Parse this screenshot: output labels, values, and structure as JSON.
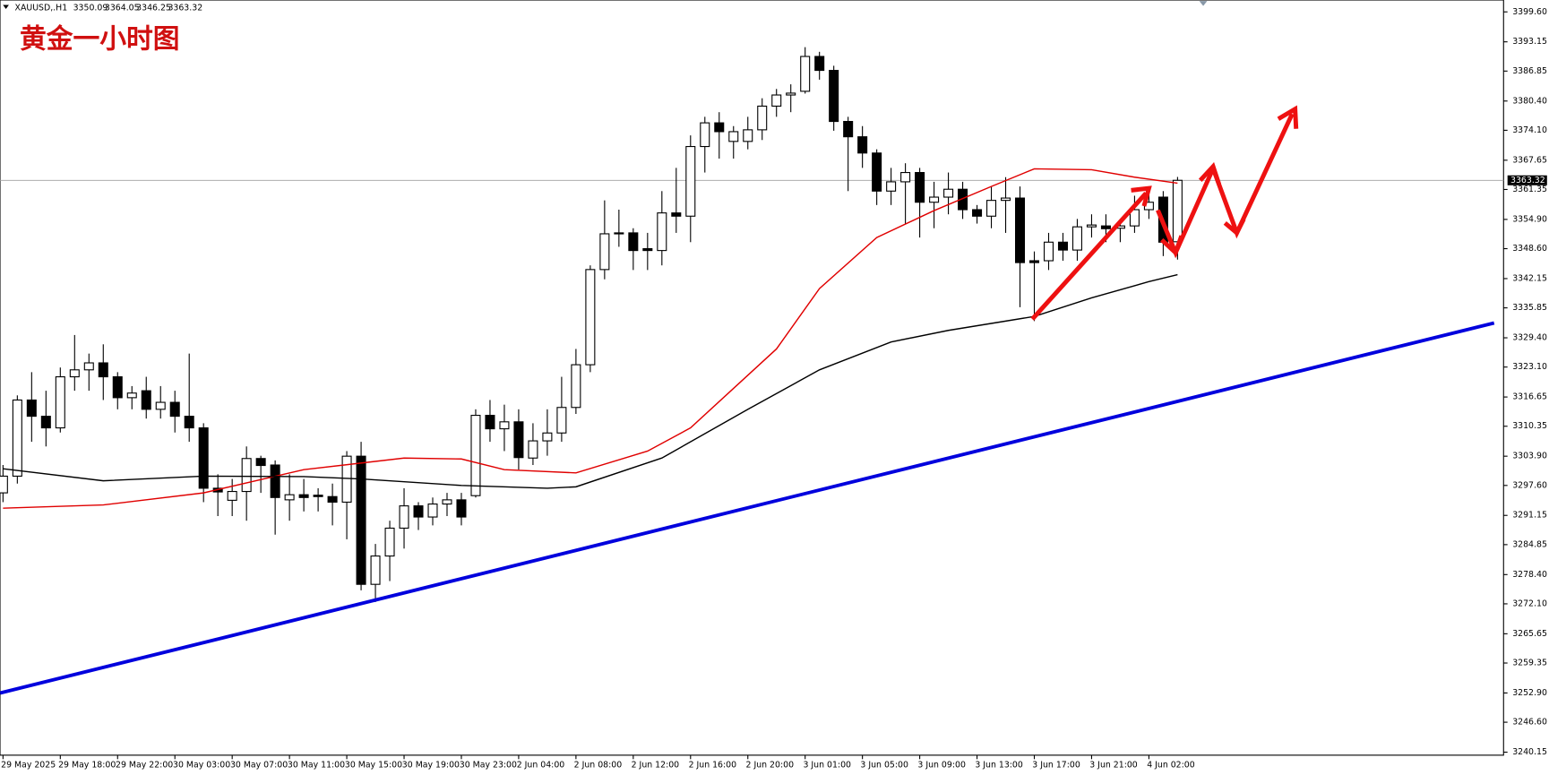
{
  "chart_data": {
    "type": "candlestick",
    "symbol": "XAUUSD,.H1",
    "header_values": [
      3350.09,
      3364.05,
      3346.25,
      3363.32
    ],
    "title": "黄金一小时图",
    "last_price": 3363.32,
    "categories": [
      "29 May 2025",
      null,
      null,
      null,
      "29 May 18:00",
      null,
      null,
      null,
      "29 May 22:00",
      null,
      null,
      null,
      "30 May 03:00",
      null,
      null,
      null,
      "30 May 07:00",
      null,
      null,
      null,
      "30 May 11:00",
      null,
      null,
      null,
      "30 May 15:00",
      null,
      null,
      null,
      "30 May 19:00",
      null,
      null,
      null,
      "30 May 23:00",
      null,
      null,
      null,
      "2 Jun 04:00",
      null,
      null,
      null,
      "2 Jun 08:00",
      null,
      null,
      null,
      "2 Jun 12:00",
      null,
      null,
      null,
      "2 Jun 16:00",
      null,
      null,
      null,
      "2 Jun 20:00",
      null,
      null,
      null,
      "3 Jun 01:00",
      null,
      null,
      null,
      "3 Jun 05:00",
      null,
      null,
      null,
      "3 Jun 09:00",
      null,
      null,
      null,
      "3 Jun 13:00",
      null,
      null,
      null,
      "3 Jun 17:00",
      null,
      null,
      null,
      "3 Jun 21:00",
      null,
      null,
      null,
      "4 Jun 02:00",
      null,
      null
    ],
    "open": [
      3296.0,
      3299.6,
      3316,
      3312.5,
      3310,
      3321,
      3322.5,
      3324,
      3321,
      3316.5,
      3318,
      3314,
      3315.5,
      3312.5,
      3310,
      3297,
      3294.4,
      3296.3,
      3303.4,
      3302,
      3294.5,
      3295.6,
      3295.5,
      3295.2,
      3294,
      3303.9,
      3276.3,
      3282.4,
      3288.4,
      3293.2,
      3290.8,
      3293.6,
      3294.5,
      3295.4,
      3312.7,
      3309.8,
      3311.3,
      3303.5,
      3307.2,
      3308.9,
      3314.4,
      3323.6,
      3344.1,
      3351.8,
      3352,
      3348.6,
      3348.2,
      3356.3,
      3355.6,
      3370.6,
      3375.7,
      3371.7,
      3371.7,
      3374.2,
      3379.3,
      3381.7,
      3382.5,
      3390,
      3387,
      3376,
      3372.7,
      3369.2,
      3361,
      3363,
      3365,
      3358.6,
      3359.7,
      3361.4,
      3357,
      3355.6,
      3359,
      3359.5,
      3346,
      3346,
      3350,
      3348.3,
      3353.3,
      3353.5,
      3353,
      3353.5,
      3357,
      3359.7,
      3350.09
    ],
    "high": [
      3302,
      3317,
      3322,
      3318,
      3323,
      3330,
      3326,
      3328,
      3322,
      3319,
      3321,
      3319,
      3318,
      3326,
      3311,
      3300,
      3299,
      3306,
      3304,
      3303,
      3300,
      3299,
      3297,
      3298,
      3305,
      3307,
      3285,
      3290,
      3297,
      3294,
      3295,
      3296,
      3296,
      3314,
      3316,
      3315,
      3314,
      3311,
      3314,
      3321,
      3327,
      3345,
      3359,
      3357,
      3353,
      3352,
      3361,
      3366,
      3373,
      3377,
      3378,
      3375,
      3377,
      3381,
      3383,
      3384,
      3392,
      3391,
      3388,
      3377,
      3375,
      3370,
      3366,
      3367,
      3366,
      3363,
      3365,
      3363,
      3358,
      3362,
      3364,
      3362,
      3348,
      3352,
      3352,
      3355,
      3356,
      3356,
      3355,
      3360,
      3362,
      3361,
      3364.05
    ],
    "low": [
      3294,
      3298,
      3307,
      3306,
      3309,
      3318,
      3318,
      3316,
      3314,
      3314,
      3312,
      3312,
      3309,
      3307,
      3294,
      3291,
      3291,
      3290,
      3296,
      3287,
      3290,
      3292,
      3292,
      3289,
      3286,
      3275,
      3272.5,
      3277,
      3284,
      3288,
      3289,
      3291,
      3289,
      3295,
      3307,
      3305,
      3301,
      3302,
      3304,
      3307,
      3313,
      3322,
      3342,
      3349,
      3344,
      3344,
      3345,
      3352,
      3350,
      3365,
      3368,
      3368,
      3370,
      3372,
      3377,
      3378,
      3382,
      3385,
      3374,
      3361,
      3366,
      3358,
      3358,
      3354,
      3351,
      3353,
      3356,
      3355,
      3354,
      3353,
      3352,
      3336,
      3333,
      3344,
      3346,
      3346,
      3351,
      3350,
      3350,
      3352,
      3355,
      3347,
      3346.25
    ],
    "close": [
      3299.6,
      3316,
      3312.5,
      3310,
      3321,
      3322.5,
      3324,
      3321,
      3316.5,
      3317.5,
      3314,
      3315.5,
      3312.5,
      3310,
      3297,
      3296.2,
      3296.3,
      3303.4,
      3301.9,
      3295,
      3295.6,
      3295,
      3295.2,
      3294,
      3303.9,
      3276.3,
      3282.4,
      3288.4,
      3293.2,
      3290.8,
      3293.6,
      3294.5,
      3290.8,
      3312.7,
      3309.8,
      3311.3,
      3303.6,
      3307.2,
      3308.9,
      3314.4,
      3323.6,
      3344.1,
      3351.8,
      3352,
      3348.2,
      3348.2,
      3356.3,
      3355.6,
      3370.6,
      3375.7,
      3373.8,
      3373.8,
      3374.2,
      3379.3,
      3381.7,
      3382.1,
      3390,
      3387,
      3376,
      3372.7,
      3369.2,
      3361,
      3363,
      3365,
      3358.6,
      3359.7,
      3361.4,
      3357,
      3355.6,
      3359,
      3359.5,
      3345.6,
      3345.6,
      3350,
      3348.3,
      3353.3,
      3353.7,
      3352.9,
      3353.5,
      3357,
      3358.6,
      3350,
      3363.32
    ],
    "lines": [
      {
        "color": "#e00000",
        "x": [
          0,
          7,
          14,
          21,
          28,
          32,
          35,
          40,
          45,
          48,
          54,
          57,
          61,
          65,
          69,
          72,
          76,
          79,
          82
        ],
        "values": [
          3292.7,
          3293.4,
          3296,
          3301,
          3303.5,
          3303.3,
          3301,
          3300.3,
          3305,
          3310,
          3327,
          3340,
          3351,
          3356.8,
          3362,
          3365.8,
          3365.6,
          3364,
          3362.7
        ]
      },
      {
        "color": "#000000",
        "x": [
          0,
          7,
          14,
          21,
          25,
          32,
          38,
          40,
          46,
          52,
          57,
          62,
          66,
          70,
          72,
          76,
          80,
          82
        ],
        "values": [
          3301.2,
          3298.6,
          3299.6,
          3299.5,
          3299,
          3297.6,
          3297,
          3297.3,
          3303.5,
          3314,
          3322.5,
          3328.5,
          3331,
          3333,
          3334,
          3338,
          3341.5,
          3343
        ]
      },
      {
        "color": "#0000dd",
        "x": [
          -0.2,
          104.1
        ],
        "values": [
          3252.9,
          3332.6
        ]
      }
    ],
    "up_color": "#ffffff",
    "down_color": "#000000",
    "xlim": [
      -0.21,
      104.76
    ],
    "ylim": [
      3239.5,
      3402.16
    ],
    "yticks": [
      {
        "value": 3399.6,
        "label": "3399.60"
      },
      3393.15,
      3386.85,
      {
        "value": 3380.4,
        "label": "3380.40"
      },
      {
        "value": 3374.1,
        "label": "3374.10"
      },
      3367.65,
      3361.35,
      {
        "value": 3354.9,
        "label": "3354.90"
      },
      {
        "value": 3348.6,
        "label": "3348.60"
      },
      3342.15,
      3335.85,
      {
        "value": 3329.4,
        "label": "3329.40"
      },
      {
        "value": 3323.1,
        "label": "3323.10"
      },
      3316.65,
      3310.35,
      {
        "value": 3303.9,
        "label": "3303.90"
      },
      {
        "value": 3297.6,
        "label": "3297.60"
      },
      3291.15,
      3284.85,
      {
        "value": 3278.4,
        "label": "3278.40"
      },
      {
        "value": 3272.1,
        "label": "3272.10"
      },
      3265.65,
      3259.35,
      {
        "value": 3252.9,
        "label": "3252.90"
      },
      {
        "value": 3246.6,
        "label": "3246.60"
      },
      3240.15
    ]
  }
}
